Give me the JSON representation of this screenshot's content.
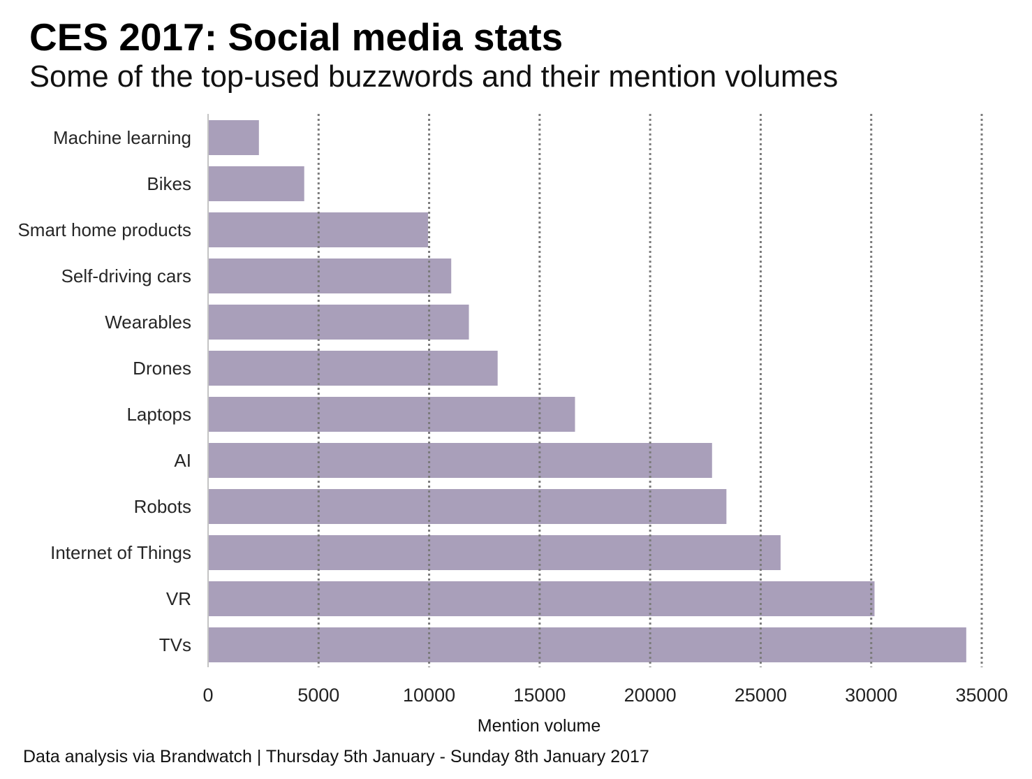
{
  "chart_data": {
    "type": "bar",
    "orientation": "horizontal",
    "title": "CES 2017: Social media stats",
    "subtitle": "Some of the top-used buzzwords and their mention volumes",
    "categories": [
      "Machine learning",
      "Bikes",
      "Smart home products",
      "Self-driving cars",
      "Wearables",
      "Drones",
      "Laptops",
      "AI",
      "Robots",
      "Internet of Things",
      "VR",
      "TVs"
    ],
    "values": [
      2300,
      4350,
      9950,
      11000,
      11800,
      13100,
      16600,
      22800,
      23450,
      25900,
      30150,
      34300
    ],
    "xlabel": "Mention volume",
    "xlim": [
      0,
      35000
    ],
    "xticks": [
      0,
      5000,
      10000,
      15000,
      20000,
      25000,
      30000,
      35000
    ],
    "grid": true,
    "legend": false,
    "colors": {
      "bar": "#a99fba",
      "grid": "#7b7b7b",
      "axis": "#c4c4c4"
    }
  },
  "footer": {
    "source_note": "Data analysis via Brandwatch | Thursday 5th January - Sunday 8th January 2017"
  }
}
